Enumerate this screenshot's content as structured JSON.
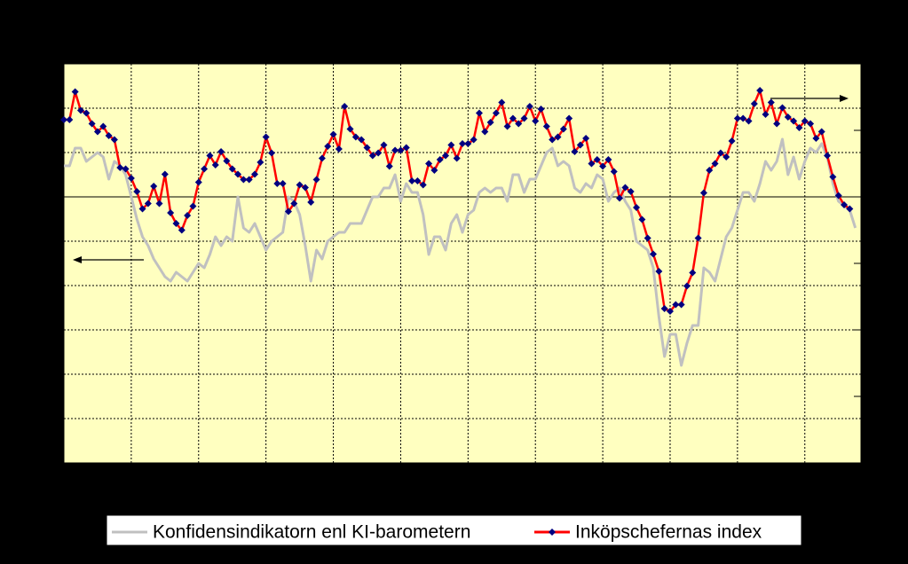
{
  "chart_data": {
    "type": "line",
    "series": [
      {
        "name": "Konfidensindikatorn enl KI-barometern",
        "color": "#c0c0c0",
        "axis": "y",
        "values": [
          7,
          7,
          11,
          11,
          8,
          9,
          10,
          9,
          4,
          8,
          7,
          5,
          0,
          -5,
          -9,
          -11,
          -14,
          -16,
          -18,
          -19,
          -17,
          -18,
          -19,
          -17,
          -15,
          -16,
          -13,
          -9,
          -11,
          -9,
          -10,
          0,
          -7,
          -8,
          -6,
          -9,
          -12,
          -10,
          -9,
          -8,
          0,
          -1,
          -4,
          -11,
          -19,
          -12,
          -14,
          -10,
          -9,
          -8,
          -8,
          -6,
          -6,
          -6,
          -3,
          0,
          0,
          2,
          2,
          5,
          -1,
          3,
          1,
          1,
          -4,
          -13,
          -9,
          -9,
          -12,
          -6,
          -4,
          -8,
          -4,
          -3,
          1,
          2,
          1,
          2,
          2,
          -1,
          5,
          5,
          1,
          4,
          4,
          7,
          10,
          11,
          7,
          8,
          7,
          2,
          1,
          3,
          2,
          5,
          4,
          -1,
          1,
          2,
          -1,
          -3,
          -10,
          -11,
          -12,
          -16,
          -27,
          -36,
          -31,
          -31,
          -38,
          -33,
          -29,
          -29,
          -16,
          -17,
          -19,
          -14,
          -9,
          -7,
          -3,
          1,
          1,
          -1,
          3,
          8,
          6,
          8,
          13,
          5,
          9,
          4,
          8,
          11,
          10,
          12,
          9,
          3,
          -1,
          -2,
          -3,
          -7
        ]
      },
      {
        "name": "Inköpschefernas index",
        "color": "#ff0000",
        "marker_color": "#000080",
        "axis": "y2",
        "values": [
          55.8,
          55.8,
          57.9,
          56.5,
          56.3,
          55.5,
          54.9,
          55.3,
          54.6,
          54.3,
          52.2,
          52.1,
          51.4,
          50.4,
          49.1,
          49.5,
          50.8,
          49.5,
          51.7,
          48.8,
          48,
          47.5,
          48.6,
          49.3,
          51.1,
          52.1,
          53.1,
          52.4,
          53.4,
          52.7,
          52.1,
          51.7,
          51.3,
          51.3,
          51.7,
          52.6,
          54.5,
          53.3,
          51,
          51,
          48.9,
          49.5,
          50.9,
          50.7,
          49.6,
          51.3,
          52.9,
          53.8,
          54.7,
          53.6,
          56.8,
          55.1,
          54.5,
          54.3,
          53.7,
          53.1,
          53.3,
          53.9,
          52.3,
          53.5,
          53.5,
          53.7,
          51.2,
          51.2,
          50.9,
          52.5,
          52,
          52.8,
          53.1,
          53.9,
          52.9,
          54,
          54,
          54.3,
          56.3,
          54.9,
          55.6,
          56.3,
          57.1,
          55.3,
          55.9,
          55.5,
          55.9,
          56.8,
          55.7,
          56.6,
          55.3,
          54.3,
          54.5,
          55.1,
          55.9,
          53.4,
          53.9,
          54.4,
          52.5,
          52.8,
          52.3,
          52.8,
          51.9,
          49.9,
          50.7,
          50.4,
          49.2,
          48.3,
          46.9,
          45.7,
          44.4,
          41.6,
          41.4,
          41.9,
          41.9,
          43.3,
          44.3,
          46.9,
          50.3,
          52,
          52.5,
          53.3,
          53,
          54.2,
          55.9,
          55.9,
          55.7,
          57,
          58,
          56.2,
          57.1,
          55.5,
          56.7,
          56,
          55.7,
          55.2,
          55.7,
          55.5,
          54.4,
          54.9,
          53.1,
          51.5,
          50.1,
          49.4,
          49.1
        ]
      }
    ],
    "xlim": [
      0,
      142
    ],
    "xticks": [
      12,
      24,
      36,
      48,
      60,
      72,
      84,
      96,
      108,
      120,
      132
    ],
    "ylim": [
      -60,
      30
    ],
    "yticks": [
      -60,
      -50,
      -40,
      -30,
      -20,
      -10,
      0,
      10,
      20,
      30
    ],
    "y2lim": [
      30,
      60
    ],
    "y2ticks": [
      30,
      35,
      40,
      45,
      50,
      55,
      60
    ],
    "grid": true,
    "background": "#ffffc0"
  }
}
